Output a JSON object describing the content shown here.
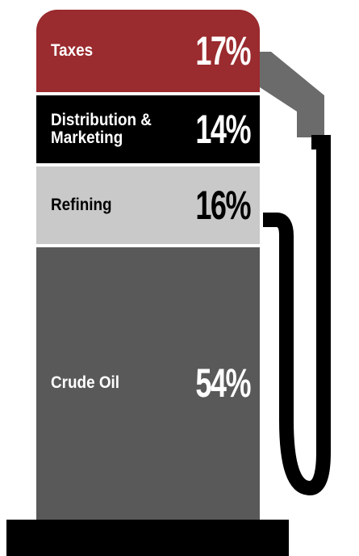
{
  "chart_data": {
    "type": "pump",
    "categories": [
      "Taxes",
      "Distribution & Marketing",
      "Refining",
      "Crude Oil"
    ],
    "values": [
      17,
      14,
      16,
      54
    ],
    "value_labels": [
      "17%",
      "14%",
      "16%",
      "54%"
    ],
    "colors": [
      "#9a2b2e",
      "#000000",
      "#c9c9c9",
      "#595959"
    ]
  }
}
